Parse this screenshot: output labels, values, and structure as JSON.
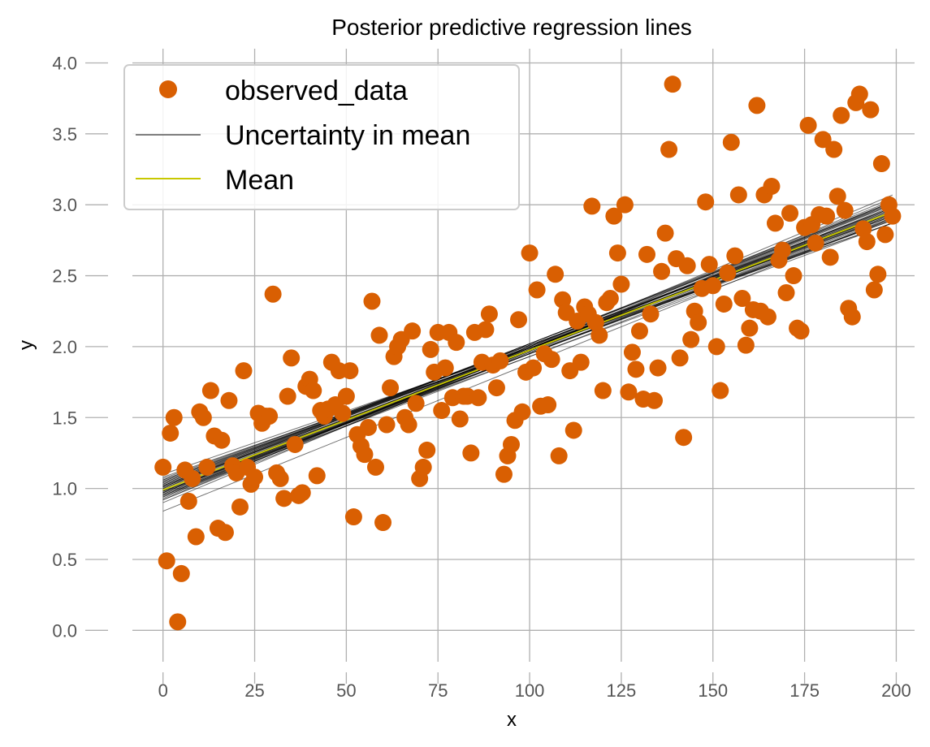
{
  "chart_data": {
    "type": "scatter",
    "title": "Posterior predictive regression lines",
    "xlabel": "x",
    "ylabel": "y",
    "xlim": [
      -15,
      205
    ],
    "ylim": [
      -0.25,
      4.1
    ],
    "xticks": [
      0,
      25,
      50,
      75,
      100,
      125,
      150,
      175,
      200
    ],
    "yticks": [
      0.0,
      0.5,
      1.0,
      1.5,
      2.0,
      2.5,
      3.0,
      3.5,
      4.0
    ],
    "xtick_labels": [
      "0",
      "25",
      "50",
      "75",
      "100",
      "125",
      "150",
      "175",
      "200"
    ],
    "ytick_labels": [
      "0.0",
      "0.5",
      "1.0",
      "1.5",
      "2.0",
      "2.5",
      "3.0",
      "3.5",
      "4.0"
    ],
    "grid": true,
    "legend_position": "top-left",
    "colors": {
      "observed": "#D95F02",
      "uncertainty": "#000000",
      "mean": "#C8C800",
      "grid": "#b0b0b0"
    },
    "legend": [
      {
        "label": "observed_data",
        "kind": "marker",
        "color": "#D95F02"
      },
      {
        "label": "Uncertainty in mean",
        "kind": "line",
        "color": "#555555"
      },
      {
        "label": "Mean",
        "kind": "line",
        "color": "#C8C800"
      }
    ],
    "series": [
      {
        "name": "observed_data",
        "kind": "scatter",
        "points": [
          [
            0,
            1.15
          ],
          [
            1,
            0.49
          ],
          [
            2,
            1.39
          ],
          [
            3,
            1.5
          ],
          [
            4,
            0.06
          ],
          [
            5,
            0.4
          ],
          [
            6,
            1.13
          ],
          [
            7,
            0.91
          ],
          [
            8,
            1.07
          ],
          [
            9,
            0.66
          ],
          [
            10,
            1.54
          ],
          [
            11,
            1.5
          ],
          [
            12,
            1.15
          ],
          [
            13,
            1.69
          ],
          [
            14,
            1.37
          ],
          [
            15,
            0.72
          ],
          [
            16,
            1.34
          ],
          [
            17,
            0.69
          ],
          [
            18,
            1.62
          ],
          [
            19,
            1.16
          ],
          [
            20,
            1.11
          ],
          [
            21,
            0.87
          ],
          [
            22,
            1.83
          ],
          [
            23,
            1.15
          ],
          [
            24,
            1.03
          ],
          [
            25,
            1.08
          ],
          [
            26,
            1.53
          ],
          [
            27,
            1.46
          ],
          [
            28,
            1.51
          ],
          [
            29,
            1.51
          ],
          [
            30,
            2.37
          ],
          [
            31,
            1.11
          ],
          [
            32,
            1.07
          ],
          [
            33,
            0.93
          ],
          [
            34,
            1.65
          ],
          [
            35,
            1.92
          ],
          [
            36,
            1.31
          ],
          [
            37,
            0.95
          ],
          [
            38,
            0.97
          ],
          [
            39,
            1.72
          ],
          [
            40,
            1.77
          ],
          [
            41,
            1.69
          ],
          [
            42,
            1.09
          ],
          [
            43,
            1.55
          ],
          [
            44,
            1.51
          ],
          [
            45,
            1.56
          ],
          [
            46,
            1.89
          ],
          [
            47,
            1.59
          ],
          [
            48,
            1.83
          ],
          [
            49,
            1.53
          ],
          [
            50,
            1.65
          ],
          [
            51,
            1.83
          ],
          [
            52,
            0.8
          ],
          [
            53,
            1.38
          ],
          [
            54,
            1.3
          ],
          [
            55,
            1.24
          ],
          [
            56,
            1.43
          ],
          [
            57,
            2.32
          ],
          [
            58,
            1.15
          ],
          [
            59,
            2.08
          ],
          [
            60,
            0.76
          ],
          [
            61,
            1.45
          ],
          [
            62,
            1.71
          ],
          [
            63,
            1.93
          ],
          [
            64,
            2.0
          ],
          [
            65,
            2.05
          ],
          [
            66,
            1.5
          ],
          [
            67,
            1.45
          ],
          [
            68,
            2.11
          ],
          [
            69,
            1.6
          ],
          [
            70,
            1.07
          ],
          [
            71,
            1.15
          ],
          [
            72,
            1.27
          ],
          [
            73,
            1.98
          ],
          [
            74,
            1.82
          ],
          [
            75,
            2.1
          ],
          [
            76,
            1.55
          ],
          [
            77,
            1.85
          ],
          [
            78,
            2.1
          ],
          [
            79,
            1.64
          ],
          [
            80,
            2.03
          ],
          [
            81,
            1.49
          ],
          [
            82,
            1.65
          ],
          [
            83,
            1.65
          ],
          [
            84,
            1.25
          ],
          [
            85,
            2.1
          ],
          [
            86,
            1.64
          ],
          [
            87,
            1.89
          ],
          [
            88,
            2.12
          ],
          [
            89,
            2.23
          ],
          [
            90,
            1.87
          ],
          [
            91,
            1.71
          ],
          [
            92,
            1.9
          ],
          [
            93,
            1.1
          ],
          [
            94,
            1.23
          ],
          [
            95,
            1.31
          ],
          [
            96,
            1.48
          ],
          [
            97,
            2.19
          ],
          [
            98,
            1.54
          ],
          [
            99,
            1.82
          ],
          [
            100,
            2.66
          ],
          [
            101,
            1.85
          ],
          [
            102,
            2.4
          ],
          [
            103,
            1.58
          ],
          [
            104,
            1.95
          ],
          [
            105,
            1.59
          ],
          [
            106,
            1.91
          ],
          [
            107,
            2.51
          ],
          [
            108,
            1.23
          ],
          [
            109,
            2.33
          ],
          [
            110,
            2.24
          ],
          [
            111,
            1.83
          ],
          [
            112,
            1.41
          ],
          [
            113,
            2.18
          ],
          [
            114,
            1.89
          ],
          [
            115,
            2.28
          ],
          [
            116,
            2.23
          ],
          [
            117,
            2.99
          ],
          [
            118,
            2.17
          ],
          [
            119,
            2.08
          ],
          [
            120,
            1.69
          ],
          [
            121,
            2.31
          ],
          [
            122,
            2.34
          ],
          [
            123,
            2.92
          ],
          [
            124,
            2.66
          ],
          [
            125,
            2.44
          ],
          [
            126,
            3.0
          ],
          [
            127,
            1.68
          ],
          [
            128,
            1.96
          ],
          [
            129,
            1.84
          ],
          [
            130,
            2.11
          ],
          [
            131,
            1.63
          ],
          [
            132,
            2.65
          ],
          [
            133,
            2.23
          ],
          [
            134,
            1.62
          ],
          [
            135,
            1.85
          ],
          [
            136,
            2.53
          ],
          [
            137,
            2.8
          ],
          [
            138,
            3.39
          ],
          [
            139,
            3.85
          ],
          [
            140,
            2.62
          ],
          [
            141,
            1.92
          ],
          [
            142,
            1.36
          ],
          [
            143,
            2.57
          ],
          [
            144,
            2.05
          ],
          [
            145,
            2.25
          ],
          [
            146,
            2.17
          ],
          [
            147,
            2.41
          ],
          [
            148,
            3.02
          ],
          [
            149,
            2.58
          ],
          [
            150,
            2.43
          ],
          [
            151,
            2.0
          ],
          [
            152,
            1.69
          ],
          [
            153,
            2.3
          ],
          [
            154,
            2.52
          ],
          [
            155,
            3.44
          ],
          [
            156,
            2.64
          ],
          [
            157,
            3.07
          ],
          [
            158,
            2.34
          ],
          [
            159,
            2.01
          ],
          [
            160,
            2.13
          ],
          [
            161,
            2.26
          ],
          [
            162,
            3.7
          ],
          [
            163,
            2.25
          ],
          [
            164,
            3.07
          ],
          [
            165,
            2.21
          ],
          [
            166,
            3.13
          ],
          [
            167,
            2.87
          ],
          [
            168,
            2.61
          ],
          [
            169,
            2.68
          ],
          [
            170,
            2.38
          ],
          [
            171,
            2.94
          ],
          [
            172,
            2.5
          ],
          [
            173,
            2.13
          ],
          [
            174,
            2.11
          ],
          [
            175,
            2.84
          ],
          [
            176,
            3.56
          ],
          [
            177,
            2.86
          ],
          [
            178,
            2.73
          ],
          [
            179,
            2.93
          ],
          [
            180,
            3.46
          ],
          [
            181,
            2.92
          ],
          [
            182,
            2.63
          ],
          [
            183,
            3.39
          ],
          [
            184,
            3.06
          ],
          [
            185,
            3.63
          ],
          [
            186,
            2.96
          ],
          [
            187,
            2.27
          ],
          [
            188,
            2.21
          ],
          [
            189,
            3.72
          ],
          [
            190,
            3.78
          ],
          [
            191,
            2.83
          ],
          [
            192,
            2.74
          ],
          [
            193,
            3.67
          ],
          [
            194,
            2.4
          ],
          [
            195,
            2.51
          ],
          [
            196,
            3.29
          ],
          [
            197,
            2.79
          ],
          [
            198,
            3.0
          ],
          [
            199,
            2.92
          ]
        ]
      },
      {
        "name": "Uncertainty in mean",
        "kind": "lines",
        "lines": [
          [
            0.98,
            0.0099
          ],
          [
            1.02,
            0.0097
          ],
          [
            0.95,
            0.0102
          ],
          [
            1.05,
            0.0094
          ],
          [
            0.99,
            0.0098
          ],
          [
            1.01,
            0.0099
          ],
          [
            0.97,
            0.01
          ],
          [
            1.03,
            0.0096
          ],
          [
            0.94,
            0.0104
          ],
          [
            1.06,
            0.0092
          ],
          [
            0.92,
            0.0108
          ],
          [
            1.08,
            0.009
          ],
          [
            0.96,
            0.0101
          ],
          [
            1.04,
            0.0095
          ],
          [
            0.99,
            0.01
          ],
          [
            1.0,
            0.0098
          ],
          [
            0.93,
            0.0105
          ],
          [
            1.07,
            0.0093
          ],
          [
            0.97,
            0.0103
          ],
          [
            1.02,
            0.0094
          ],
          [
            0.95,
            0.0098
          ],
          [
            1.01,
            0.0101
          ],
          [
            0.98,
            0.0097
          ],
          [
            1.04,
            0.0097
          ],
          [
            0.9,
            0.0108
          ],
          [
            1.1,
            0.0089
          ],
          [
            0.96,
            0.0099
          ],
          [
            1.03,
            0.0099
          ],
          [
            0.84,
            0.0104
          ],
          [
            1.0,
            0.0102
          ],
          [
            0.99,
            0.0096
          ],
          [
            0.97,
            0.0098
          ],
          [
            1.05,
            0.0096
          ],
          [
            0.94,
            0.0101
          ],
          [
            1.02,
            0.01
          ],
          [
            0.98,
            0.0095
          ],
          [
            1.06,
            0.0095
          ],
          [
            0.95,
            0.0103
          ],
          [
            1.01,
            0.0097
          ],
          [
            0.92,
            0.0104
          ]
        ]
      },
      {
        "name": "Mean",
        "kind": "line",
        "intercept": 0.99,
        "slope": 0.00985
      }
    ]
  }
}
